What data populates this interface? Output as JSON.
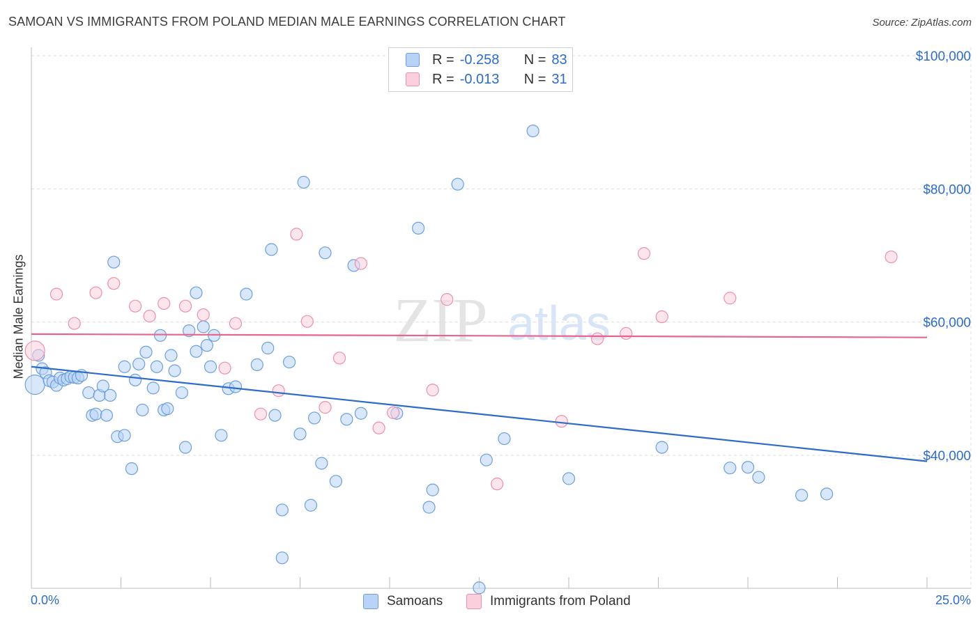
{
  "title": "SAMOAN VS IMMIGRANTS FROM POLAND MEDIAN MALE EARNINGS CORRELATION CHART",
  "source": "Source: ZipAtlas.com",
  "watermark": {
    "zip": "ZIP",
    "atlas": "atlas"
  },
  "legend": {
    "r_label": "R =",
    "n_label": "N =",
    "rows": [
      {
        "r": "-0.258",
        "n": "83"
      },
      {
        "r": "-0.013",
        "n": "31"
      }
    ]
  },
  "bottom_legend": [
    "Samoans",
    "Immigrants from Poland"
  ],
  "x_axis": {
    "min_label": "0.0%",
    "max_label": "25.0%"
  },
  "y_axis_label": "Median Male Earnings",
  "chart_data": {
    "type": "scatter",
    "title": "SAMOAN VS IMMIGRANTS FROM POLAND MEDIAN MALE EARNINGS CORRELATION CHART",
    "xlabel": "",
    "ylabel": "Median Male Earnings",
    "xlim": [
      0,
      25
    ],
    "ylim": [
      20000,
      102000
    ],
    "yticks": [
      {
        "value": 40000,
        "label": "$40,000"
      },
      {
        "value": 60000,
        "label": "$60,000"
      },
      {
        "value": 80000,
        "label": "$80,000"
      },
      {
        "value": 100000,
        "label": "$100,000"
      }
    ],
    "colors": {
      "blue": "#2d6cc7",
      "blue_fill": "#b8d3f5",
      "pink": "#e8648f",
      "pink_fill": "#fbcfdc"
    },
    "series": [
      {
        "name": "Samoans",
        "color": "blue",
        "trend": {
          "x": [
            0,
            25
          ],
          "y": [
            53300,
            39100
          ]
        },
        "points": [
          [
            0.1,
            50.6
          ],
          [
            0.2,
            55.0
          ],
          [
            0.3,
            53.0
          ],
          [
            0.4,
            52.4
          ],
          [
            0.5,
            51.2
          ],
          [
            0.6,
            51.0
          ],
          [
            0.7,
            50.5
          ],
          [
            0.8,
            51.6
          ],
          [
            0.9,
            51.3
          ],
          [
            1.0,
            51.5
          ],
          [
            1.1,
            51.8
          ],
          [
            1.2,
            51.7
          ],
          [
            1.3,
            51.6
          ],
          [
            1.4,
            52.0
          ],
          [
            1.6,
            49.4
          ],
          [
            1.7,
            46.0
          ],
          [
            1.8,
            46.2
          ],
          [
            1.9,
            49.0
          ],
          [
            2.0,
            50.4
          ],
          [
            2.1,
            46.0
          ],
          [
            2.2,
            49.0
          ],
          [
            2.3,
            69.0
          ],
          [
            2.4,
            42.8
          ],
          [
            2.6,
            43.0
          ],
          [
            2.6,
            53.3
          ],
          [
            2.8,
            38.0
          ],
          [
            2.9,
            51.3
          ],
          [
            3.0,
            53.7
          ],
          [
            3.1,
            46.8
          ],
          [
            3.2,
            55.5
          ],
          [
            3.4,
            50.1
          ],
          [
            3.5,
            53.3
          ],
          [
            3.6,
            58.0
          ],
          [
            3.7,
            46.8
          ],
          [
            3.8,
            47.0
          ],
          [
            3.9,
            55.0
          ],
          [
            4.0,
            52.7
          ],
          [
            4.2,
            49.4
          ],
          [
            4.3,
            41.2
          ],
          [
            4.4,
            58.7
          ],
          [
            4.6,
            64.4
          ],
          [
            4.6,
            55.6
          ],
          [
            4.8,
            59.3
          ],
          [
            4.9,
            56.5
          ],
          [
            5.0,
            53.3
          ],
          [
            5.1,
            58.0
          ],
          [
            5.3,
            43.0
          ],
          [
            5.5,
            50.0
          ],
          [
            5.7,
            50.3
          ],
          [
            6.0,
            64.2
          ],
          [
            6.3,
            53.6
          ],
          [
            6.6,
            56.1
          ],
          [
            6.7,
            70.9
          ],
          [
            6.8,
            46.0
          ],
          [
            7.0,
            31.8
          ],
          [
            7.0,
            24.6
          ],
          [
            7.2,
            54.0
          ],
          [
            7.5,
            43.2
          ],
          [
            7.6,
            81.0
          ],
          [
            7.8,
            32.5
          ],
          [
            7.9,
            45.6
          ],
          [
            8.1,
            38.8
          ],
          [
            8.2,
            70.4
          ],
          [
            8.5,
            36.1
          ],
          [
            8.8,
            45.4
          ],
          [
            9.0,
            68.5
          ],
          [
            9.2,
            46.3
          ],
          [
            10.2,
            46.3
          ],
          [
            10.8,
            74.1
          ],
          [
            11.1,
            32.2
          ],
          [
            11.2,
            34.8
          ],
          [
            11.9,
            80.7
          ],
          [
            12.5,
            20.1
          ],
          [
            12.7,
            39.3
          ],
          [
            13.2,
            42.5
          ],
          [
            14.0,
            88.7
          ],
          [
            15.0,
            36.5
          ],
          [
            17.6,
            41.2
          ],
          [
            19.5,
            38.1
          ],
          [
            20.0,
            38.2
          ],
          [
            20.3,
            36.7
          ],
          [
            21.5,
            34.0
          ],
          [
            22.2,
            34.2
          ]
        ]
      },
      {
        "name": "Immigrants from Poland",
        "color": "pink",
        "trend": {
          "x": [
            0,
            25
          ],
          "y": [
            58200,
            57700
          ]
        },
        "points": [
          [
            0.1,
            55.7
          ],
          [
            0.7,
            64.2
          ],
          [
            1.2,
            59.8
          ],
          [
            1.8,
            64.4
          ],
          [
            2.3,
            65.8
          ],
          [
            2.9,
            62.4
          ],
          [
            3.3,
            60.9
          ],
          [
            3.7,
            62.8
          ],
          [
            4.3,
            62.4
          ],
          [
            4.8,
            61.1
          ],
          [
            5.4,
            53.1
          ],
          [
            5.7,
            59.8
          ],
          [
            6.4,
            46.2
          ],
          [
            6.9,
            49.7
          ],
          [
            7.4,
            73.2
          ],
          [
            7.7,
            60.1
          ],
          [
            8.2,
            47.2
          ],
          [
            8.6,
            54.6
          ],
          [
            9.2,
            68.8
          ],
          [
            9.7,
            44.1
          ],
          [
            10.1,
            46.4
          ],
          [
            11.2,
            49.8
          ],
          [
            11.6,
            63.4
          ],
          [
            13.0,
            35.7
          ],
          [
            14.8,
            45.1
          ],
          [
            15.8,
            57.5
          ],
          [
            16.6,
            58.3
          ],
          [
            17.1,
            70.3
          ],
          [
            17.6,
            60.8
          ],
          [
            19.5,
            63.6
          ],
          [
            24.0,
            69.8
          ]
        ]
      }
    ]
  }
}
